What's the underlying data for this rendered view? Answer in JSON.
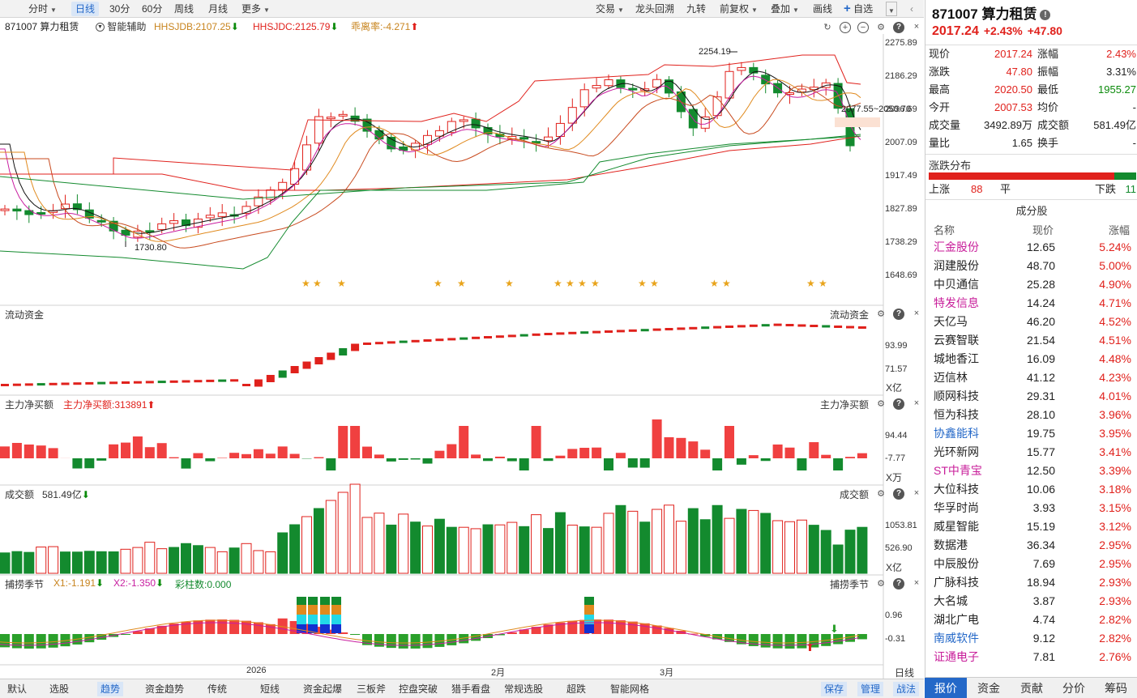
{
  "toolbar": {
    "left": [
      "分时",
      "日线",
      "30分",
      "60分",
      "周线",
      "月线",
      "更多"
    ],
    "right": [
      "交易",
      "龙头回溯",
      "九转",
      "前复权",
      "叠加",
      "画线",
      "自选"
    ]
  },
  "info": {
    "code_name": "871007 算力租赁",
    "assist": "智能辅助",
    "hhsjdb": "HHSJDB:2107.25",
    "hhsjdc": "HHSJDC:2125.79",
    "deviation": "乖离率:-4.271"
  },
  "main_axis": [
    "2275.89",
    "2186.29",
    "2096.69",
    "2007.09",
    "1917.49",
    "1827.89",
    "1738.29",
    "1648.69"
  ],
  "annotations": {
    "high": "2254.19",
    "low": "1730.80",
    "band": "2077.55~2050.70"
  },
  "panels": {
    "flow": {
      "title": "流动资金",
      "title_r": "流动资金",
      "axis": [
        "93.99",
        "71.57"
      ],
      "unit": "X亿"
    },
    "main_net": {
      "title": "主力净买额",
      "value": "主力净买额:313891",
      "title_r": "主力净买额",
      "axis": [
        "94.44",
        "-7.77"
      ],
      "unit": "X万"
    },
    "volume": {
      "title": "成交额",
      "value": "581.49亿",
      "title_r": "成交额",
      "axis": [
        "1053.81",
        "526.90"
      ],
      "unit": "X亿"
    },
    "season": {
      "title": "捕捞季节",
      "x1": "X1:-1.191",
      "x2": "X2:-1.350",
      "bars": "彩柱数:0.000",
      "title_r": "捕捞季节",
      "axis": [
        "0.96",
        "-0.31"
      ]
    }
  },
  "dates": [
    "2026",
    "2月",
    "3月"
  ],
  "axis_mode": "日线",
  "bottom_tabs": [
    "默认",
    "选股",
    "趋势",
    "资金趋势",
    "传统",
    "短线",
    "资金起爆",
    "三板斧",
    "控盘突破",
    "猎手看盘",
    "常规选股",
    "超跌",
    "智能网格"
  ],
  "bottom_right": [
    "保存",
    "管理",
    "战法"
  ],
  "quote": {
    "title": "871007 算力租赁",
    "price": "2017.24",
    "pct": "+2.43%",
    "chg": "+47.80",
    "rows": [
      [
        "现价",
        "2017.24",
        "涨幅",
        "2.43%"
      ],
      [
        "涨跌",
        "47.80",
        "振幅",
        "3.31%"
      ],
      [
        "最高",
        "2020.50",
        "最低",
        "1955.27"
      ],
      [
        "今开",
        "2007.53",
        "均价",
        "-"
      ],
      [
        "成交量",
        "3492.89万",
        "成交额",
        "581.49亿"
      ],
      [
        "量比",
        "1.65",
        "换手",
        "-"
      ]
    ],
    "dist_title": "涨跌分布",
    "up_label": "上涨",
    "up": "88",
    "flat_label": "平",
    "flat": "",
    "down_label": "下跌",
    "down": "11",
    "constituents_title": "成分股",
    "cols": [
      "名称",
      "现价",
      "涨幅"
    ],
    "stocks": [
      [
        "汇金股份",
        "12.65",
        "5.24%"
      ],
      [
        "润建股份",
        "48.70",
        "5.00%"
      ],
      [
        "中贝通信",
        "25.28",
        "4.90%"
      ],
      [
        "特发信息",
        "14.24",
        "4.71%"
      ],
      [
        "天亿马",
        "46.20",
        "4.52%"
      ],
      [
        "云赛智联",
        "21.54",
        "4.51%"
      ],
      [
        "城地香江",
        "16.09",
        "4.48%"
      ],
      [
        "迈信林",
        "41.12",
        "4.23%"
      ],
      [
        "顺网科技",
        "29.31",
        "4.01%"
      ],
      [
        "恒为科技",
        "28.10",
        "3.96%"
      ],
      [
        "协鑫能科",
        "19.75",
        "3.95%"
      ],
      [
        "光环新网",
        "15.77",
        "3.41%"
      ],
      [
        "ST中青宝",
        "12.50",
        "3.39%"
      ],
      [
        "大位科技",
        "10.06",
        "3.18%"
      ],
      [
        "华孚时尚",
        "3.93",
        "3.15%"
      ],
      [
        "威星智能",
        "15.19",
        "3.12%"
      ],
      [
        "数据港",
        "36.34",
        "2.95%"
      ],
      [
        "中辰股份",
        "7.69",
        "2.95%"
      ],
      [
        "广脉科技",
        "18.94",
        "2.93%"
      ],
      [
        "大名城",
        "3.87",
        "2.93%"
      ],
      [
        "湖北广电",
        "4.74",
        "2.82%"
      ],
      [
        "南威软件",
        "9.12",
        "2.82%"
      ],
      [
        "证通电子",
        "7.81",
        "2.76%"
      ]
    ],
    "tabs": [
      "报价",
      "资金",
      "贡献",
      "分价",
      "筹码"
    ]
  },
  "colors": {
    "up": "#e0211c",
    "down": "#138a2e",
    "accent": "#2468c8"
  }
}
